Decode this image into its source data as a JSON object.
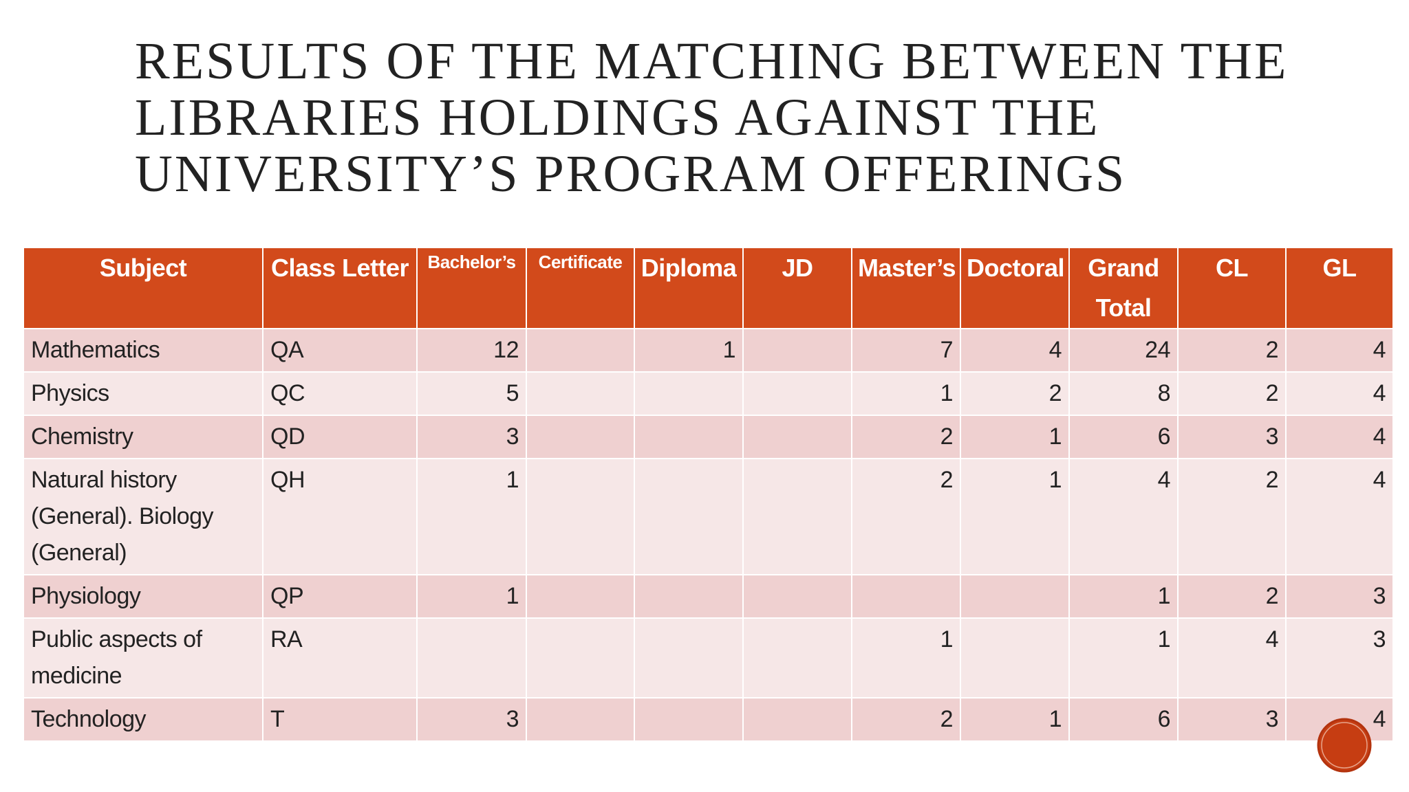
{
  "header": {
    "title": "RESULTS OF THE MATCHING BETWEEN THE LIBRARIES HOLDINGS AGAINST THE UNIVERSITY’S PROGRAM OFFERINGS"
  },
  "table": {
    "columns": [
      "Subject",
      "Class Letter",
      "Bachelor’s",
      "Certificate",
      "Diploma",
      "JD",
      "Master’s",
      "Doctoral",
      "Grand Total",
      "CL",
      "GL"
    ],
    "rows": [
      [
        "Mathematics",
        "QA",
        12,
        null,
        1,
        null,
        7,
        4,
        24,
        2,
        4
      ],
      [
        "Physics",
        "QC",
        5,
        null,
        null,
        null,
        1,
        2,
        8,
        2,
        4
      ],
      [
        "Chemistry",
        "QD",
        3,
        null,
        null,
        null,
        2,
        1,
        6,
        3,
        4
      ],
      [
        "Natural history (General). Biology (General)",
        "QH",
        1,
        null,
        null,
        null,
        2,
        1,
        4,
        2,
        4
      ],
      [
        "Physiology",
        "QP",
        1,
        null,
        null,
        null,
        null,
        null,
        1,
        2,
        3
      ],
      [
        "Public aspects of medicine",
        "RA",
        null,
        null,
        null,
        null,
        1,
        null,
        1,
        4,
        3
      ],
      [
        "Technology",
        "T",
        3,
        null,
        null,
        null,
        2,
        1,
        6,
        3,
        4
      ]
    ]
  }
}
